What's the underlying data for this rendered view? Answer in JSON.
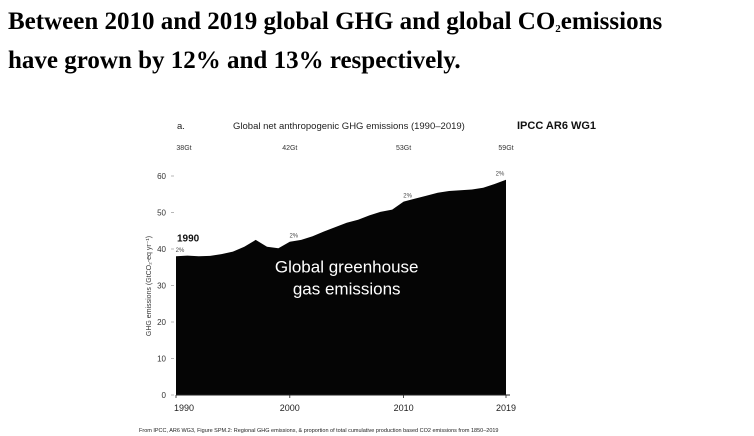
{
  "headline": {
    "line1_before": "Between 2010 and 2019 global GHG and global CO",
    "line1_sub": "2",
    "line1_after": "emissions",
    "line2": "have grown by 12% and 13% respectively."
  },
  "chart_data": {
    "type": "area",
    "panel_letter": "a.",
    "title": "Global net anthropogenic GHG emissions (1990–2019)",
    "source_tag": "IPCC AR6 WG1",
    "ylabel": "GHG emissions (GtCO₂-eq yr⁻¹)",
    "xlabel": "",
    "ylim": [
      0,
      60
    ],
    "yticks": [
      0,
      10,
      20,
      30,
      40,
      50,
      60
    ],
    "xlim": [
      1990,
      2019
    ],
    "xticks": [
      1990,
      2000,
      2010,
      2019
    ],
    "grid": false,
    "series": [
      {
        "x": [
          1990,
          1991,
          1992,
          1993,
          1994,
          1995,
          1996,
          1997,
          1998,
          1999,
          2000,
          2001,
          2002,
          2003,
          2004,
          2005,
          2006,
          2007,
          2008,
          2009,
          2010,
          2011,
          2012,
          2013,
          2014,
          2015,
          2016,
          2017,
          2018,
          2019
        ],
        "values": [
          38.0,
          38.2,
          38.0,
          38.1,
          38.6,
          39.3,
          40.6,
          42.5,
          40.6,
          40.2,
          42.0,
          42.5,
          43.5,
          44.8,
          46.0,
          47.2,
          48.0,
          49.2,
          50.2,
          50.8,
          53.0,
          53.8,
          54.6,
          55.4,
          55.9,
          56.1,
          56.3,
          56.8,
          57.8,
          59.0
        ]
      }
    ],
    "top_totals": [
      {
        "year": 1990,
        "label": "38Gt"
      },
      {
        "year": 2000,
        "label": "42Gt"
      },
      {
        "year": 2010,
        "label": "53Gt"
      },
      {
        "year": 2019,
        "label": "59Gt"
      }
    ],
    "annotations": [
      {
        "text": "1990",
        "x": 1990,
        "y": 42
      },
      {
        "text": "Global greenhouse",
        "x": 2005,
        "y": 33.5
      },
      {
        "text": "gas emissions",
        "x": 2005,
        "y": 27.5
      }
    ],
    "percent_labels": [
      {
        "text": "2%",
        "x": 1990,
        "y": 38.6
      },
      {
        "text": "2%",
        "x": 2000,
        "y": 42.6
      },
      {
        "text": "2%",
        "x": 2010,
        "y": 53.6
      },
      {
        "text": "2%",
        "x": 2019,
        "y": 59.6
      }
    ],
    "colors": {
      "area": "#050505",
      "axis": "#222222",
      "text": "#333333"
    }
  },
  "credit": "From IPCC, AR6 WG3, Figure SPM.2: Regional GHG emissions, & proportion of total cumulative production based CO2 emissions from 1850–2019"
}
